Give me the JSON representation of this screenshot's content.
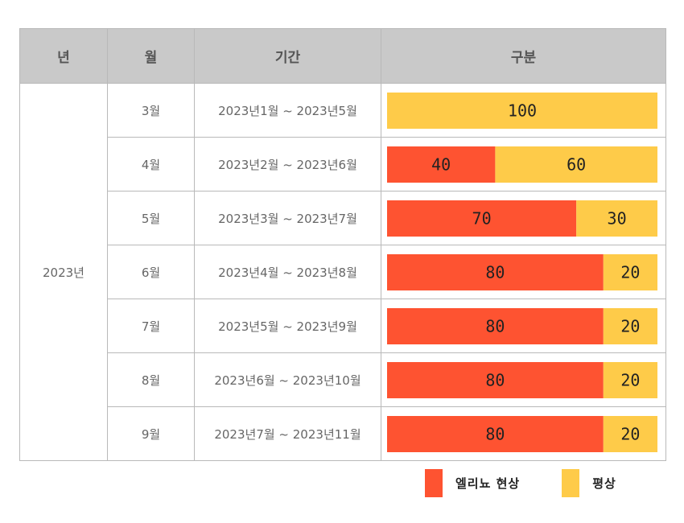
{
  "colors": {
    "series_a": "#fe5331",
    "series_b": "#fecb49"
  },
  "header": {
    "year": "년",
    "month": "월",
    "period": "기간",
    "category": "구분"
  },
  "year_label": "2023년",
  "chart_data": {
    "type": "bar",
    "stacked": true,
    "orientation": "horizontal",
    "xlim": [
      0,
      100
    ],
    "categories": [
      "3월",
      "4월",
      "5월",
      "6월",
      "7월",
      "8월",
      "9월"
    ],
    "periods": [
      "2023년1월 ~ 2023년5월",
      "2023년2월 ~ 2023년6월",
      "2023년3월 ~ 2023년7월",
      "2023년4월 ~ 2023년8월",
      "2023년5월 ~ 2023년9월",
      "2023년6월 ~ 2023년10월",
      "2023년7월 ~ 2023년11월"
    ],
    "series": [
      {
        "name": "엘리뇨 현상",
        "values": [
          0,
          40,
          70,
          80,
          80,
          80,
          80
        ]
      },
      {
        "name": "평상",
        "values": [
          100,
          60,
          30,
          20,
          20,
          20,
          20
        ]
      }
    ],
    "legend_position": "bottom-right"
  }
}
